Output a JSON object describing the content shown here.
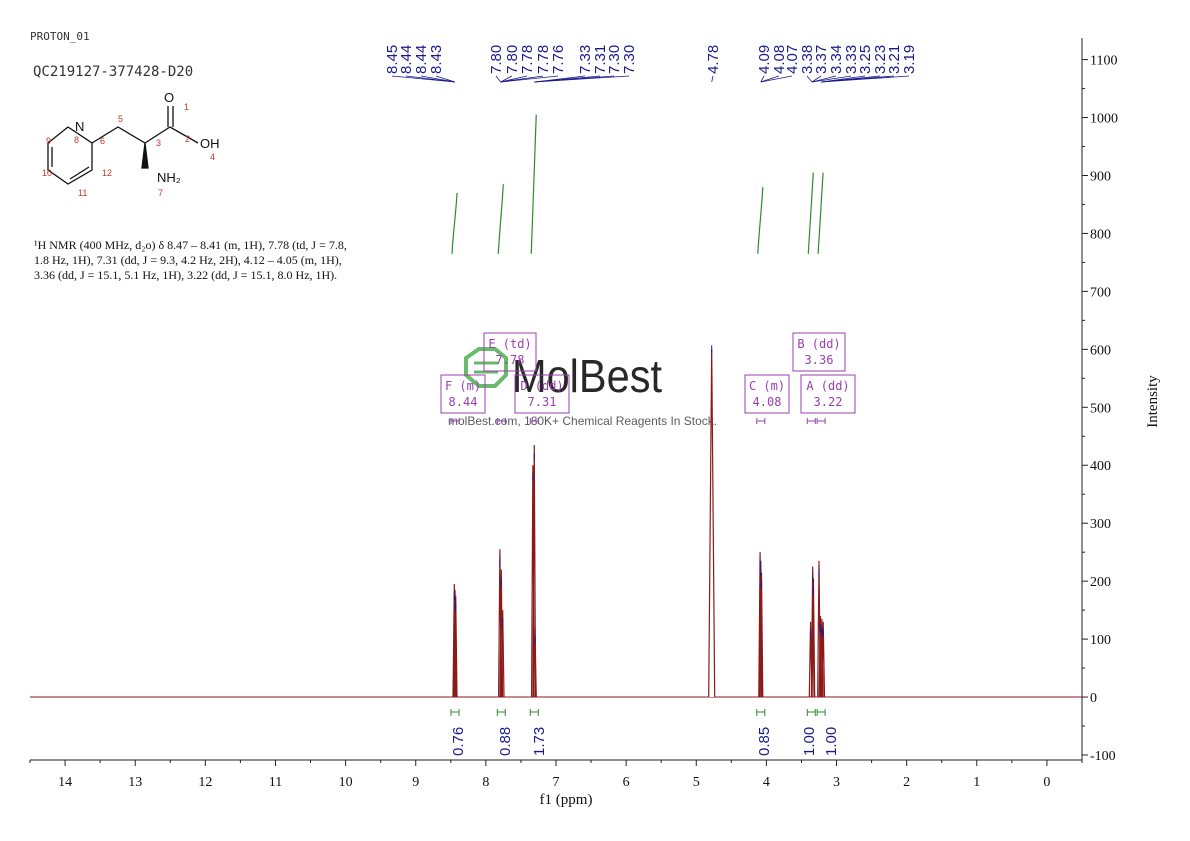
{
  "sample_name": "PROTON_01",
  "sample_id": "QC219127-377428-D20",
  "nmr_description": "¹H NMR (400 MHz, d₂o) δ 8.47 – 8.41 (m, 1H), 7.78 (td, J = 7.8, 1.8 Hz, 1H), 7.31 (dd, J = 9.3, 4.2 Hz, 2H), 4.12 – 4.05 (m, 1H), 3.36 (dd, J = 15.1, 5.1 Hz, 1H), 3.22 (dd, J = 15.1, 8.0 Hz, 1H).",
  "watermark": {
    "brand": "MolBest",
    "tagline": "molBest.com, 180K+ Chemical Reagents In Stock."
  },
  "structure": {
    "atom_labels": [
      "N",
      "OH",
      "O",
      "NH₂"
    ],
    "atom_numbers": [
      "1",
      "2",
      "3",
      "4",
      "5",
      "6",
      "7",
      "8",
      "9",
      "10",
      "11",
      "12"
    ]
  },
  "colors": {
    "spectrum": "#8b1a1a",
    "peak_labels": "#1a1a8c",
    "integral": "#2e8b2e",
    "multiplet_box": "#9b3fb0",
    "axis": "#222222",
    "watermark": "#4caf50"
  },
  "chart_data": {
    "type": "line",
    "xlabel": "f1 (ppm)",
    "ylabel": "Intensity",
    "xlim": [
      14.5,
      -0.5
    ],
    "ylim": [
      -100,
      1120
    ],
    "x_reversed": true,
    "x_ticks": [
      14,
      13,
      12,
      11,
      10,
      9,
      8,
      7,
      6,
      5,
      4,
      3,
      2,
      1,
      0
    ],
    "y_ticks": [
      -100,
      0,
      100,
      200,
      300,
      400,
      500,
      600,
      700,
      800,
      900,
      1000,
      1100
    ],
    "peaks": [
      {
        "ppm": 8.45,
        "height": 195
      },
      {
        "ppm": 8.44,
        "height": 185
      },
      {
        "ppm": 8.43,
        "height": 175
      },
      {
        "ppm": 7.8,
        "height": 255
      },
      {
        "ppm": 7.78,
        "height": 220
      },
      {
        "ppm": 7.76,
        "height": 150
      },
      {
        "ppm": 7.33,
        "height": 400
      },
      {
        "ppm": 7.31,
        "height": 435
      },
      {
        "ppm": 7.3,
        "height": 120
      },
      {
        "ppm": 4.78,
        "height": 600
      },
      {
        "ppm": 4.09,
        "height": 250
      },
      {
        "ppm": 4.08,
        "height": 235
      },
      {
        "ppm": 4.07,
        "height": 215
      },
      {
        "ppm": 3.37,
        "height": 130
      },
      {
        "ppm": 3.34,
        "height": 225
      },
      {
        "ppm": 3.33,
        "height": 205
      },
      {
        "ppm": 3.25,
        "height": 235
      },
      {
        "ppm": 3.23,
        "height": 140
      },
      {
        "ppm": 3.21,
        "height": 135
      },
      {
        "ppm": 3.19,
        "height": 130
      }
    ],
    "peak_labels": [
      "8.45",
      "8.44",
      "8.44",
      "8.43",
      "7.80",
      "7.80",
      "7.78",
      "7.78",
      "7.76",
      "7.33",
      "7.31",
      "7.30",
      "7.30",
      "4.78",
      "4.09",
      "4.08",
      "4.07",
      "3.38",
      "3.37",
      "3.34",
      "3.33",
      "3.25",
      "3.23",
      "3.21",
      "3.19"
    ],
    "integrals": [
      {
        "center": 8.44,
        "value": "0.76"
      },
      {
        "center": 7.78,
        "value": "0.88"
      },
      {
        "center": 7.31,
        "value": "1.73"
      },
      {
        "center": 4.08,
        "value": "0.85"
      },
      {
        "center": 3.36,
        "value": "1.00"
      },
      {
        "center": 3.22,
        "value": "1.00"
      }
    ],
    "multiplets": [
      {
        "label": "F (m)",
        "shift": "8.44"
      },
      {
        "label": "E (td)",
        "shift": "7.78"
      },
      {
        "label": "D (dd)",
        "shift": "7.31"
      },
      {
        "label": "C (m)",
        "shift": "4.08"
      },
      {
        "label": "B (dd)",
        "shift": "3.36"
      },
      {
        "label": "A (dd)",
        "shift": "3.22"
      }
    ]
  }
}
